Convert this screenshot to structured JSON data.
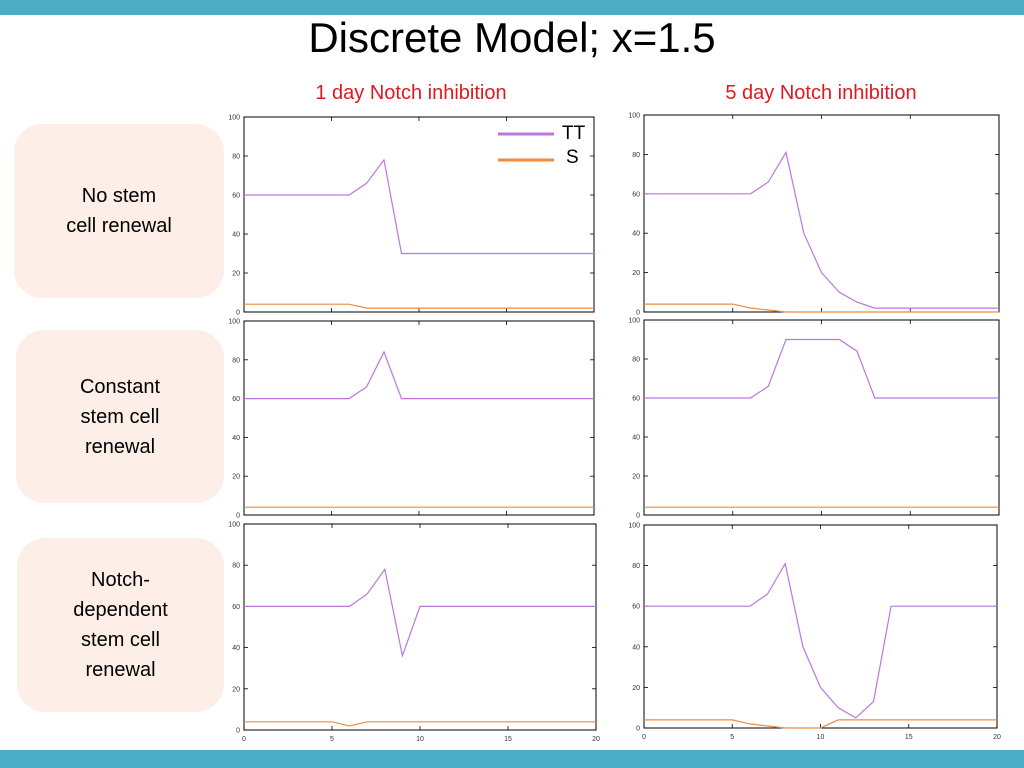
{
  "slide": {
    "title": "Discrete Model; x=1.5",
    "col_headers": [
      "1 day Notch inhibition",
      "5 day Notch inhibition"
    ],
    "row_labels": [
      "No stem\ncell renewal",
      "Constant\nstem cell\nrenewal",
      "Notch-\ndependent\nstem cell\nrenewal"
    ],
    "colors": {
      "accent_bar": "#4bacc6",
      "header_text": "#e0191f",
      "row_box": "#fdeee7"
    }
  },
  "legend": {
    "entries": [
      {
        "label": "TT",
        "color": "#bb77dd"
      },
      {
        "label": "S",
        "color": "#f08a3c"
      }
    ],
    "placement": "top-right of first chart"
  },
  "chart_data": [
    {
      "type": "line",
      "row": 0,
      "col": 0,
      "xlim": [
        0,
        20
      ],
      "ylim": [
        0,
        100
      ],
      "yticks": [
        "0",
        "20",
        "40",
        "60",
        "80",
        "100"
      ],
      "xticks": [],
      "series": [
        {
          "name": "TT",
          "color": "#bb77dd",
          "x": [
            0,
            1,
            2,
            3,
            4,
            5,
            6,
            7,
            8,
            9,
            10,
            11,
            12,
            13,
            14,
            15,
            16,
            17,
            18,
            19,
            20
          ],
          "y": [
            60,
            60,
            60,
            60,
            60,
            60,
            60,
            66,
            78,
            30,
            30,
            30,
            30,
            30,
            30,
            30,
            30,
            30,
            30,
            30,
            30
          ]
        },
        {
          "name": "S",
          "color": "#f08a3c",
          "x": [
            0,
            1,
            2,
            3,
            4,
            5,
            6,
            7,
            8,
            9,
            10,
            11,
            12,
            13,
            14,
            15,
            16,
            17,
            18,
            19,
            20
          ],
          "y": [
            4,
            4,
            4,
            4,
            4,
            4,
            4,
            2,
            2,
            2,
            2,
            2,
            2,
            2,
            2,
            2,
            2,
            2,
            2,
            2,
            2
          ]
        }
      ]
    },
    {
      "type": "line",
      "row": 0,
      "col": 1,
      "xlim": [
        0,
        20
      ],
      "ylim": [
        0,
        100
      ],
      "yticks": [
        "0",
        "20",
        "40",
        "60",
        "80",
        "100"
      ],
      "xticks": [],
      "series": [
        {
          "name": "TT",
          "color": "#bb77dd",
          "x": [
            0,
            1,
            2,
            3,
            4,
            5,
            6,
            7,
            8,
            9,
            10,
            11,
            12,
            13,
            14,
            15,
            16,
            17,
            18,
            19,
            20
          ],
          "y": [
            60,
            60,
            60,
            60,
            60,
            60,
            60,
            66,
            81,
            40,
            20,
            10,
            5,
            2,
            2,
            2,
            2,
            2,
            2,
            2,
            2
          ]
        },
        {
          "name": "S",
          "color": "#f08a3c",
          "x": [
            0,
            1,
            2,
            3,
            4,
            5,
            6,
            7,
            8,
            9,
            10,
            11,
            12,
            13,
            14,
            15,
            16,
            17,
            18,
            19,
            20
          ],
          "y": [
            4,
            4,
            4,
            4,
            4,
            4,
            2,
            1,
            0,
            0,
            0,
            0,
            0,
            0,
            0,
            0,
            0,
            0,
            0,
            0,
            0
          ]
        }
      ]
    },
    {
      "type": "line",
      "row": 1,
      "col": 0,
      "xlim": [
        0,
        20
      ],
      "ylim": [
        0,
        100
      ],
      "yticks": [
        "0",
        "20",
        "40",
        "60",
        "80",
        "100"
      ],
      "xticks": [],
      "series": [
        {
          "name": "TT",
          "color": "#bb77dd",
          "x": [
            0,
            1,
            2,
            3,
            4,
            5,
            6,
            7,
            8,
            9,
            10,
            11,
            12,
            13,
            14,
            15,
            16,
            17,
            18,
            19,
            20
          ],
          "y": [
            60,
            60,
            60,
            60,
            60,
            60,
            60,
            66,
            84,
            60,
            60,
            60,
            60,
            60,
            60,
            60,
            60,
            60,
            60,
            60,
            60
          ]
        },
        {
          "name": "S",
          "color": "#f08a3c",
          "x": [
            0,
            1,
            2,
            3,
            4,
            5,
            6,
            7,
            8,
            9,
            10,
            11,
            12,
            13,
            14,
            15,
            16,
            17,
            18,
            19,
            20
          ],
          "y": [
            4,
            4,
            4,
            4,
            4,
            4,
            4,
            4,
            4,
            4,
            4,
            4,
            4,
            4,
            4,
            4,
            4,
            4,
            4,
            4,
            4
          ]
        }
      ]
    },
    {
      "type": "line",
      "row": 1,
      "col": 1,
      "xlim": [
        0,
        20
      ],
      "ylim": [
        0,
        100
      ],
      "yticks": [
        "0",
        "20",
        "40",
        "60",
        "80",
        "100"
      ],
      "xticks": [],
      "series": [
        {
          "name": "TT",
          "color": "#bb77dd",
          "x": [
            0,
            1,
            2,
            3,
            4,
            5,
            6,
            7,
            8,
            9,
            10,
            11,
            12,
            13,
            14,
            15,
            16,
            17,
            18,
            19,
            20
          ],
          "y": [
            60,
            60,
            60,
            60,
            60,
            60,
            60,
            66,
            90,
            90,
            90,
            90,
            84,
            60,
            60,
            60,
            60,
            60,
            60,
            60,
            60
          ]
        },
        {
          "name": "S",
          "color": "#f08a3c",
          "x": [
            0,
            1,
            2,
            3,
            4,
            5,
            6,
            7,
            8,
            9,
            10,
            11,
            12,
            13,
            14,
            15,
            16,
            17,
            18,
            19,
            20
          ],
          "y": [
            4,
            4,
            4,
            4,
            4,
            4,
            4,
            4,
            4,
            4,
            4,
            4,
            4,
            4,
            4,
            4,
            4,
            4,
            4,
            4,
            4
          ]
        }
      ]
    },
    {
      "type": "line",
      "row": 2,
      "col": 0,
      "xlim": [
        0,
        20
      ],
      "ylim": [
        0,
        100
      ],
      "yticks": [
        "0",
        "20",
        "40",
        "60",
        "80",
        "100"
      ],
      "xticks": [
        "0",
        "5",
        "10",
        "15",
        "20"
      ],
      "series": [
        {
          "name": "TT",
          "color": "#bb77dd",
          "x": [
            0,
            1,
            2,
            3,
            4,
            5,
            6,
            7,
            8,
            9,
            10,
            11,
            12,
            13,
            14,
            15,
            16,
            17,
            18,
            19,
            20
          ],
          "y": [
            60,
            60,
            60,
            60,
            60,
            60,
            60,
            66,
            78,
            36,
            60,
            60,
            60,
            60,
            60,
            60,
            60,
            60,
            60,
            60,
            60
          ]
        },
        {
          "name": "S",
          "color": "#f08a3c",
          "x": [
            0,
            1,
            2,
            3,
            4,
            5,
            6,
            7,
            8,
            9,
            10,
            11,
            12,
            13,
            14,
            15,
            16,
            17,
            18,
            19,
            20
          ],
          "y": [
            4,
            4,
            4,
            4,
            4,
            4,
            2,
            4,
            4,
            4,
            4,
            4,
            4,
            4,
            4,
            4,
            4,
            4,
            4,
            4,
            4
          ]
        }
      ]
    },
    {
      "type": "line",
      "row": 2,
      "col": 1,
      "xlim": [
        0,
        20
      ],
      "ylim": [
        0,
        100
      ],
      "yticks": [
        "0",
        "20",
        "40",
        "60",
        "80",
        "100"
      ],
      "xticks": [
        "0",
        "5",
        "10",
        "15",
        "20"
      ],
      "series": [
        {
          "name": "TT",
          "color": "#bb77dd",
          "x": [
            0,
            1,
            2,
            3,
            4,
            5,
            6,
            7,
            8,
            9,
            10,
            11,
            12,
            13,
            14,
            15,
            16,
            17,
            18,
            19,
            20
          ],
          "y": [
            60,
            60,
            60,
            60,
            60,
            60,
            60,
            66,
            81,
            40,
            20,
            10,
            5,
            13,
            60,
            60,
            60,
            60,
            60,
            60,
            60
          ]
        },
        {
          "name": "S",
          "color": "#f08a3c",
          "x": [
            0,
            1,
            2,
            3,
            4,
            5,
            6,
            7,
            8,
            9,
            10,
            11,
            12,
            13,
            14,
            15,
            16,
            17,
            18,
            19,
            20
          ],
          "y": [
            4,
            4,
            4,
            4,
            4,
            4,
            2,
            1,
            0,
            0,
            0,
            4,
            4,
            4,
            4,
            4,
            4,
            4,
            4,
            4,
            4
          ]
        }
      ]
    }
  ]
}
